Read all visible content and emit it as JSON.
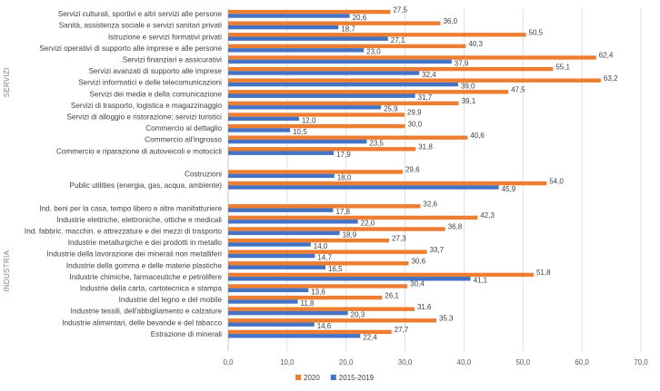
{
  "chart_data": {
    "type": "bar",
    "orientation": "horizontal",
    "xlim": [
      0,
      70
    ],
    "x_ticks": [
      0,
      10,
      20,
      30,
      40,
      50,
      60,
      70
    ],
    "x_tick_labels": [
      "0,0",
      "10,0",
      "20,0",
      "30,0",
      "40,0",
      "50,0",
      "60,0",
      "70,0"
    ],
    "grid": true,
    "legend_position": "bottom",
    "colors": {
      "2020": "#ed7d31",
      "2015-2019": "#4472c4"
    },
    "groups": [
      {
        "label": "SERVIZI",
        "categories": [
          {
            "name": "Servizi culturali, sportivi e altri servizi alle persone",
            "v2020": 27.5,
            "v2015_2019": 20.6,
            "label2020": "27,5",
            "label2015_2019": "20,6"
          },
          {
            "name": "Sanità, assistenza sociale e servizi sanitari privati",
            "v2020": 36.0,
            "v2015_2019": 18.7,
            "label2020": "36,0",
            "label2015_2019": "18,7"
          },
          {
            "name": "Istruzione e servizi formativi privati",
            "v2020": 50.5,
            "v2015_2019": 27.1,
            "label2020": "50,5",
            "label2015_2019": "27,1"
          },
          {
            "name": "Servizi operativi di supporto alle imprese e alle persone",
            "v2020": 40.3,
            "v2015_2019": 23.0,
            "label2020": "40,3",
            "label2015_2019": "23,0"
          },
          {
            "name": "Servizi finanziari e assicurativi",
            "v2020": 62.4,
            "v2015_2019": 37.9,
            "label2020": "62,4",
            "label2015_2019": "37,9"
          },
          {
            "name": "Servizi avanzati di supporto alle imprese",
            "v2020": 55.1,
            "v2015_2019": 32.4,
            "label2020": "55,1",
            "label2015_2019": "32,4"
          },
          {
            "name": "Servizi informatici e delle telecomunicazioni",
            "v2020": 63.2,
            "v2015_2019": 39.0,
            "label2020": "63,2",
            "label2015_2019": "39,0"
          },
          {
            "name": "Servizi dei media e della comunicazione",
            "v2020": 47.5,
            "v2015_2019": 31.7,
            "label2020": "47,5",
            "label2015_2019": "31,7"
          },
          {
            "name": "Servizi di trasporto, logistica e magazzinaggio",
            "v2020": 39.1,
            "v2015_2019": 25.9,
            "label2020": "39,1",
            "label2015_2019": "25,9"
          },
          {
            "name": "Servizi di alloggio e ristorazione; servizi turistici",
            "v2020": 29.9,
            "v2015_2019": 12.0,
            "label2020": "29,9",
            "label2015_2019": "12,0"
          },
          {
            "name": "Commercio al dettaglio",
            "v2020": 30.0,
            "v2015_2019": 10.5,
            "label2020": "30,0",
            "label2015_2019": "10,5"
          },
          {
            "name": "Commercio all'ingrosso",
            "v2020": 40.6,
            "v2015_2019": 23.5,
            "label2020": "40,6",
            "label2015_2019": "23,5"
          },
          {
            "name": "Commercio e riparazione di autoveicoli e motocicli",
            "v2020": 31.8,
            "v2015_2019": 17.9,
            "label2020": "31,8",
            "label2015_2019": "17,9"
          }
        ]
      },
      {
        "label": "",
        "categories": [
          {
            "name": "Costruzioni",
            "v2020": 29.6,
            "v2015_2019": 18.0,
            "label2020": "29,6",
            "label2015_2019": "18,0"
          },
          {
            "name": "Public utilities (energia, gas, acqua, ambiente)",
            "v2020": 54.0,
            "v2015_2019": 45.9,
            "label2020": "54,0",
            "label2015_2019": "45,9"
          }
        ]
      },
      {
        "label": "INDUSTRIA",
        "categories": [
          {
            "name": "Ind. beni per la casa, tempo libero e altre manifatturiere",
            "v2020": 32.6,
            "v2015_2019": 17.8,
            "label2020": "32,6",
            "label2015_2019": "17,8"
          },
          {
            "name": "Industrie elettriche, elettroniche, ottiche e medicali",
            "v2020": 42.3,
            "v2015_2019": 22.0,
            "label2020": "42,3",
            "label2015_2019": "22,0"
          },
          {
            "name": "Ind. fabbric. macchin. e attrezzature e dei mezzi di trasporto",
            "v2020": 36.8,
            "v2015_2019": 18.9,
            "label2020": "36,8",
            "label2015_2019": "18,9"
          },
          {
            "name": "Industrie metallurgiche e dei prodotti in metallo",
            "v2020": 27.3,
            "v2015_2019": 14.0,
            "label2020": "27,3",
            "label2015_2019": "14,0"
          },
          {
            "name": "Industrie della lavorazione dei minerali non metalliferi",
            "v2020": 33.7,
            "v2015_2019": 14.7,
            "label2020": "33,7",
            "label2015_2019": "14,7"
          },
          {
            "name": "Industrie della gomma e delle materie plastiche",
            "v2020": 30.6,
            "v2015_2019": 16.5,
            "label2020": "30,6",
            "label2015_2019": "16,5"
          },
          {
            "name": "Industrie chimiche, farmaceutiche e petrolifere",
            "v2020": 51.8,
            "v2015_2019": 41.1,
            "label2020": "51,8",
            "label2015_2019": "41,1"
          },
          {
            "name": "Industrie della carta, cartotecnica e stampa",
            "v2020": 30.4,
            "v2015_2019": 13.6,
            "label2020": "30,4",
            "label2015_2019": "13,6"
          },
          {
            "name": "Industrie del legno e del mobile",
            "v2020": 26.1,
            "v2015_2019": 11.8,
            "label2020": "26,1",
            "label2015_2019": "11,8"
          },
          {
            "name": "Industrie tessili, dell'abbigliamento e calzature",
            "v2020": 31.6,
            "v2015_2019": 20.3,
            "label2020": "31,6",
            "label2015_2019": "20,3"
          },
          {
            "name": "Industrie alimentari, delle bevande e del tabacco",
            "v2020": 35.3,
            "v2015_2019": 14.6,
            "label2020": "35,3",
            "label2015_2019": "14,6"
          },
          {
            "name": "Estrazione di minerali",
            "v2020": 27.7,
            "v2015_2019": 22.4,
            "label2020": "27,7",
            "label2015_2019": "22,4"
          }
        ]
      }
    ],
    "legend": [
      {
        "name": "2020",
        "color": "#ed7d31"
      },
      {
        "name": "2015-2019",
        "color": "#4472c4"
      }
    ]
  }
}
